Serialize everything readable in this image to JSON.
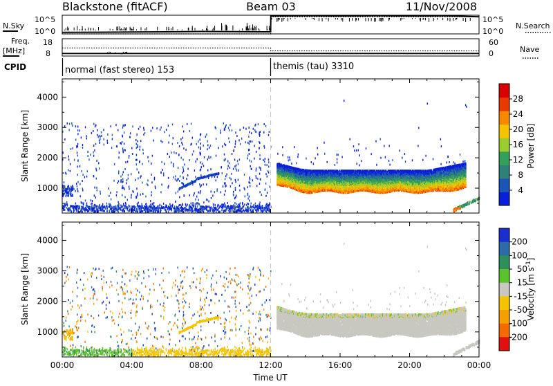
{
  "chart_data": [
    {
      "type": "line",
      "name": "header",
      "title_left": "Blackstone (fitACF)",
      "title_center": "Beam 03",
      "title_right": "11/Nov/2008"
    },
    {
      "type": "line",
      "name": "noise-panel",
      "left_label": "N.Sky",
      "left_ticks": [
        "10^5",
        "10^0"
      ],
      "right_label": "N.Search",
      "right_ticks": [
        "10^5",
        "10^0"
      ],
      "series": [
        {
          "name": "N.Sky",
          "x_hours": [
            0,
            2,
            4,
            6,
            8,
            10,
            12,
            12.01,
            14,
            16,
            18,
            20,
            22,
            24
          ],
          "values_log10": [
            0.4,
            0.45,
            0.5,
            0.55,
            0.65,
            0.6,
            0.55,
            4.8,
            4.85,
            4.8,
            4.85,
            4.8,
            4.85,
            4.6
          ]
        },
        {
          "name": "N.Search",
          "x_hours": [
            0,
            12,
            12.01,
            24
          ],
          "values_log10": [
            0.0,
            0.0,
            4.6,
            4.6
          ]
        }
      ]
    },
    {
      "type": "line",
      "name": "frequency-panel",
      "left_label_lines": [
        "Freq.",
        "[MHz]"
      ],
      "left_ticks": [
        "18",
        "8"
      ],
      "right_label": "Nave",
      "right_ticks": [
        "60",
        "0"
      ],
      "series": [
        {
          "name": "Freq.",
          "x_hours": [
            0,
            24
          ],
          "values": [
            9.5,
            9.5
          ]
        },
        {
          "name": "Nave",
          "x_hours": [
            0,
            12,
            12.01,
            24
          ],
          "values": [
            28,
            28,
            18,
            18
          ]
        }
      ]
    },
    {
      "type": "table",
      "name": "cpid-strip",
      "label": "CPID",
      "segments": [
        {
          "start_hour": 0,
          "end_hour": 12,
          "text": "normal (fast stereo) 153"
        },
        {
          "start_hour": 12,
          "end_hour": 24,
          "text": "themis (tau) 3310"
        }
      ]
    },
    {
      "type": "heatmap",
      "name": "power",
      "ylabel": "Slant Range [km]",
      "yticks": [
        1000,
        2000,
        3000,
        4000
      ],
      "ylim": [
        180,
        4600
      ],
      "xlim_hours": [
        0,
        24
      ],
      "colorbar_label": "Power [dB]",
      "colorbar_ticks": [
        4,
        8,
        12,
        16,
        20,
        24,
        28
      ],
      "colorbar_range": [
        0,
        32
      ],
      "colors": [
        "#0a1fd8",
        "#1c55b8",
        "#2f7f7a",
        "#33a05a",
        "#9ccc2e",
        "#f5c400",
        "#f58a00",
        "#e83a00",
        "#d80000"
      ],
      "features": [
        {
          "name": "pre-noon scattered echoes",
          "x_hours": [
            0,
            12
          ],
          "range_km": [
            300,
            3100
          ],
          "power_db": 2
        },
        {
          "name": "near-range echoes",
          "x_hours": [
            0,
            12
          ],
          "range_km": [
            180,
            450
          ],
          "power_db": 3
        },
        {
          "name": "morning patch",
          "x_hours": [
            0,
            0.6
          ],
          "range_km": [
            700,
            1050
          ],
          "power_db": 4
        },
        {
          "name": "band 1",
          "x_hours": [
            7.7,
            9.0
          ],
          "range_km": [
            1250,
            1450
          ],
          "power_db": 3
        },
        {
          "name": "band 2",
          "x_hours": [
            6.7,
            7.7
          ],
          "range_km": [
            900,
            1250
          ],
          "power_db": 3
        },
        {
          "name": "afternoon band",
          "x_hours": [
            12.3,
            23.2
          ],
          "range_km": [
            750,
            2000
          ],
          "power_db": 20
        },
        {
          "name": "late near-range",
          "x_hours": [
            22.5,
            24
          ],
          "range_km": [
            180,
            650
          ],
          "power_db": 24
        }
      ]
    },
    {
      "type": "heatmap",
      "name": "velocity",
      "ylabel": "Slant Range [km]",
      "yticks": [
        1000,
        2000,
        3000,
        4000
      ],
      "ylim": [
        180,
        4600
      ],
      "xlim_hours": [
        0,
        24
      ],
      "xticks": [
        "00:00",
        "04:00",
        "08:00",
        "12:00",
        "16:00",
        "20:00",
        "00:00"
      ],
      "xlabel": "Time UT",
      "colorbar_label": "Velocity [m s-1]",
      "colorbar_label_parts": [
        "Velocity [m s",
        "-1",
        "]"
      ],
      "colorbar_ticks": [
        200,
        100,
        50,
        15,
        -15,
        -50,
        -100,
        -200
      ],
      "colors": [
        "#1a2fcf",
        "#2d6aa8",
        "#2f8f5a",
        "#5cc22b",
        "#c8c8c0",
        "#f5c400",
        "#f5a000",
        "#f56a00",
        "#e01010"
      ],
      "features": [
        {
          "name": "pre-noon scattered echoes",
          "x_hours": [
            0,
            12
          ],
          "range_km": [
            300,
            3100
          ],
          "velocity": 80
        },
        {
          "name": "near-range echoes",
          "x_hours": [
            0,
            12
          ],
          "range_km": [
            180,
            450
          ],
          "velocity": -30
        },
        {
          "name": "band 1",
          "x_hours": [
            7.7,
            9.0
          ],
          "range_km": [
            1250,
            1450
          ],
          "velocity": -40
        },
        {
          "name": "band 2",
          "x_hours": [
            6.7,
            7.7
          ],
          "range_km": [
            900,
            1250
          ],
          "velocity": -40
        },
        {
          "name": "afternoon band (ground scatter)",
          "x_hours": [
            12.3,
            23.2
          ],
          "range_km": [
            750,
            2000
          ],
          "velocity": 0
        },
        {
          "name": "late near-range",
          "x_hours": [
            22.5,
            24
          ],
          "range_km": [
            180,
            650
          ],
          "velocity": 0
        }
      ]
    }
  ]
}
